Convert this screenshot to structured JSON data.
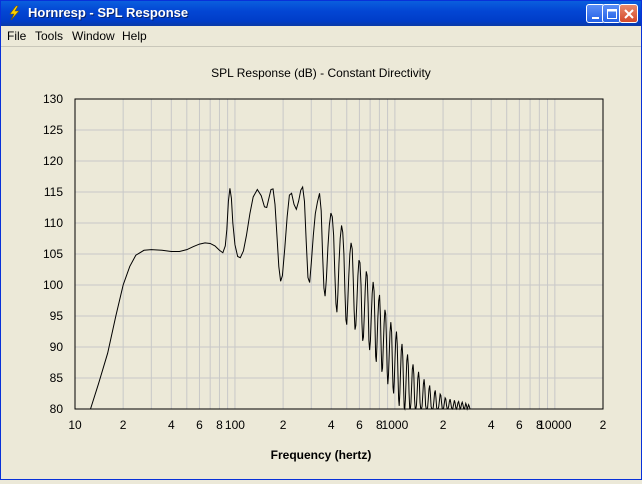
{
  "window": {
    "title": "Hornresp - SPL Response"
  },
  "menu": [
    "File",
    "Tools",
    "Window",
    "Help"
  ],
  "chart_data": {
    "type": "line",
    "title": "SPL Response (dB) - Constant Directivity",
    "xlabel": "Frequency (hertz)",
    "ylabel": "",
    "x_scale": "log",
    "xlim": [
      10,
      20000
    ],
    "ylim": [
      80,
      130
    ],
    "y_ticks": [
      130,
      125,
      120,
      115,
      110,
      105,
      100,
      95,
      90,
      85,
      80
    ],
    "x_tick_labels": [
      {
        "value": 10,
        "label": "10"
      },
      {
        "value": 20,
        "label": "2"
      },
      {
        "value": 40,
        "label": "4"
      },
      {
        "value": 60,
        "label": "6"
      },
      {
        "value": 80,
        "label": "8"
      },
      {
        "value": 100,
        "label": "100"
      },
      {
        "value": 200,
        "label": "2"
      },
      {
        "value": 400,
        "label": "4"
      },
      {
        "value": 600,
        "label": "6"
      },
      {
        "value": 800,
        "label": "8"
      },
      {
        "value": 1000,
        "label": "1000"
      },
      {
        "value": 2000,
        "label": "2"
      },
      {
        "value": 4000,
        "label": "4"
      },
      {
        "value": 6000,
        "label": "6"
      },
      {
        "value": 8000,
        "label": "8"
      },
      {
        "value": 10000,
        "label": "10000"
      },
      {
        "value": 20000,
        "label": "2"
      }
    ],
    "grid": true,
    "series": [
      {
        "line_color": "#000000",
        "points": [
          [
            12.5,
            80
          ],
          [
            14,
            84
          ],
          [
            16,
            89
          ],
          [
            18,
            95
          ],
          [
            20,
            100
          ],
          [
            22,
            103
          ],
          [
            24,
            104.8
          ],
          [
            27,
            105.6
          ],
          [
            30,
            105.7
          ],
          [
            35,
            105.6
          ],
          [
            40,
            105.4
          ],
          [
            45,
            105.4
          ],
          [
            50,
            105.7
          ],
          [
            55,
            106.2
          ],
          [
            60,
            106.6
          ],
          [
            65,
            106.8
          ],
          [
            70,
            106.7
          ],
          [
            75,
            106.3
          ],
          [
            80,
            105.6
          ],
          [
            84,
            105.2
          ],
          [
            87,
            106.3
          ],
          [
            89,
            109
          ],
          [
            91,
            113.5
          ],
          [
            93,
            115.6
          ],
          [
            95,
            114
          ],
          [
            97,
            110
          ],
          [
            100,
            106.5
          ],
          [
            104,
            104.6
          ],
          [
            108,
            104.4
          ],
          [
            113,
            105.5
          ],
          [
            118,
            108
          ],
          [
            124,
            111.5
          ],
          [
            130,
            114.2
          ],
          [
            138,
            115.4
          ],
          [
            146,
            114.4
          ],
          [
            153,
            112.6
          ],
          [
            158,
            112.5
          ],
          [
            163,
            114
          ],
          [
            168,
            115.4
          ],
          [
            173,
            115.5
          ],
          [
            178,
            113
          ],
          [
            183,
            108
          ],
          [
            188,
            103
          ],
          [
            193,
            100.6
          ],
          [
            198,
            101.5
          ],
          [
            205,
            106
          ],
          [
            212,
            111
          ],
          [
            219,
            114.5
          ],
          [
            226,
            114.8
          ],
          [
            234,
            113
          ],
          [
            242,
            112.2
          ],
          [
            250,
            113.5
          ],
          [
            258,
            115.3
          ],
          [
            265,
            115.8
          ],
          [
            272,
            113.5
          ],
          [
            279,
            107
          ],
          [
            286,
            101.2
          ],
          [
            293,
            100.4
          ],
          [
            300,
            103.5
          ],
          [
            309,
            108
          ],
          [
            318,
            111.5
          ],
          [
            328,
            113.4
          ],
          [
            338,
            114.8
          ],
          [
            346,
            112
          ],
          [
            353,
            105
          ],
          [
            360,
            99.5
          ],
          [
            366,
            98.2
          ],
          [
            373,
            101
          ],
          [
            381,
            106
          ],
          [
            389,
            109.6
          ],
          [
            398,
            111.6
          ],
          [
            406,
            111
          ],
          [
            414,
            108
          ],
          [
            421,
            102
          ],
          [
            428,
            97
          ],
          [
            434,
            95.6
          ],
          [
            440,
            98.5
          ],
          [
            447,
            103.5
          ],
          [
            455,
            107.5
          ],
          [
            464,
            109.6
          ],
          [
            472,
            108.5
          ],
          [
            480,
            105
          ],
          [
            487,
            99
          ],
          [
            494,
            94.4
          ],
          [
            500,
            93.6
          ],
          [
            507,
            97
          ],
          [
            515,
            101.5
          ],
          [
            523,
            105
          ],
          [
            532,
            106.8
          ],
          [
            541,
            105.8
          ],
          [
            549,
            101
          ],
          [
            556,
            96
          ],
          [
            563,
            92.8
          ],
          [
            570,
            93.5
          ],
          [
            578,
            97
          ],
          [
            587,
            101.5
          ],
          [
            596,
            104
          ],
          [
            605,
            103.6
          ],
          [
            614,
            100
          ],
          [
            622,
            94
          ],
          [
            629,
            91
          ],
          [
            636,
            91.6
          ],
          [
            644,
            95.3
          ],
          [
            653,
            99.6
          ],
          [
            662,
            102.2
          ],
          [
            671,
            101.5
          ],
          [
            680,
            97
          ],
          [
            688,
            91
          ],
          [
            695,
            89.5
          ],
          [
            703,
            91
          ],
          [
            712,
            95
          ],
          [
            721,
            98.6
          ],
          [
            731,
            100.5
          ],
          [
            741,
            99
          ],
          [
            750,
            94
          ],
          [
            758,
            88.5
          ],
          [
            765,
            87.6
          ],
          [
            773,
            90.5
          ],
          [
            782,
            94.6
          ],
          [
            792,
            97.5
          ],
          [
            802,
            98.4
          ],
          [
            812,
            95
          ],
          [
            821,
            89.5
          ],
          [
            829,
            86
          ],
          [
            837,
            86.6
          ],
          [
            846,
            90
          ],
          [
            856,
            93.8
          ],
          [
            866,
            96
          ],
          [
            876,
            95.3
          ],
          [
            886,
            91
          ],
          [
            895,
            86
          ],
          [
            903,
            84
          ],
          [
            912,
            85.5
          ],
          [
            922,
            89
          ],
          [
            932,
            92.4
          ],
          [
            943,
            94
          ],
          [
            954,
            92.4
          ],
          [
            964,
            87.6
          ],
          [
            973,
            83.5
          ],
          [
            982,
            82.5
          ],
          [
            991,
            84.5
          ],
          [
            1001,
            88
          ],
          [
            1012,
            91.2
          ],
          [
            1023,
            92.5
          ],
          [
            1034,
            90.5
          ],
          [
            1045,
            85.6
          ],
          [
            1055,
            81.6
          ],
          [
            1064,
            80.5
          ],
          [
            1074,
            82.6
          ],
          [
            1085,
            86.2
          ],
          [
            1096,
            89.4
          ],
          [
            1108,
            90.5
          ],
          [
            1120,
            88.5
          ],
          [
            1132,
            84
          ],
          [
            1143,
            80.2
          ],
          [
            1153,
            80
          ],
          [
            1163,
            81.5
          ],
          [
            1175,
            84.8
          ],
          [
            1187,
            87.8
          ],
          [
            1200,
            88.8
          ],
          [
            1213,
            87
          ],
          [
            1226,
            82.6
          ],
          [
            1238,
            80
          ],
          [
            1249,
            80
          ],
          [
            1260,
            81
          ],
          [
            1272,
            83.6
          ],
          [
            1285,
            86.4
          ],
          [
            1299,
            87.2
          ],
          [
            1313,
            85.6
          ],
          [
            1327,
            81.5
          ],
          [
            1340,
            80
          ],
          [
            1352,
            80
          ],
          [
            1364,
            80.6
          ],
          [
            1377,
            82.6
          ],
          [
            1391,
            85
          ],
          [
            1406,
            86
          ],
          [
            1421,
            84.6
          ],
          [
            1436,
            81
          ],
          [
            1451,
            80
          ],
          [
            1464,
            80
          ],
          [
            1478,
            80.4
          ],
          [
            1492,
            82
          ],
          [
            1507,
            84
          ],
          [
            1523,
            84.8
          ],
          [
            1539,
            83.4
          ],
          [
            1555,
            80.6
          ],
          [
            1571,
            80
          ],
          [
            1586,
            80
          ],
          [
            1601,
            80.2
          ],
          [
            1617,
            81.6
          ],
          [
            1633,
            83.2
          ],
          [
            1650,
            83.8
          ],
          [
            1667,
            82.4
          ],
          [
            1684,
            80.4
          ],
          [
            1701,
            80
          ],
          [
            1718,
            80
          ],
          [
            1735,
            80.2
          ],
          [
            1752,
            81.2
          ],
          [
            1770,
            82.6
          ],
          [
            1788,
            83
          ],
          [
            1806,
            81.8
          ],
          [
            1824,
            80.2
          ],
          [
            1842,
            80
          ],
          [
            1861,
            80
          ],
          [
            1880,
            80.4
          ],
          [
            1899,
            81.4
          ],
          [
            1918,
            82.4
          ],
          [
            1938,
            82.2
          ],
          [
            1958,
            81
          ],
          [
            1978,
            80
          ],
          [
            1998,
            80
          ],
          [
            2018,
            80.2
          ],
          [
            2039,
            81
          ],
          [
            2060,
            81.8
          ],
          [
            2081,
            81.6
          ],
          [
            2102,
            80.6
          ],
          [
            2124,
            80
          ],
          [
            2146,
            80
          ],
          [
            2168,
            80.4
          ],
          [
            2190,
            81.2
          ],
          [
            2213,
            81.6
          ],
          [
            2236,
            81
          ],
          [
            2259,
            80.2
          ],
          [
            2282,
            80
          ],
          [
            2306,
            80.2
          ],
          [
            2330,
            80.8
          ],
          [
            2354,
            81.4
          ],
          [
            2378,
            81
          ],
          [
            2403,
            80.2
          ],
          [
            2428,
            80
          ],
          [
            2453,
            80.4
          ],
          [
            2478,
            81
          ],
          [
            2504,
            81.2
          ],
          [
            2530,
            80.6
          ],
          [
            2556,
            80
          ],
          [
            2582,
            80.2
          ],
          [
            2609,
            80.8
          ],
          [
            2636,
            81.1
          ],
          [
            2663,
            80.7
          ],
          [
            2690,
            80.1
          ],
          [
            2718,
            80
          ],
          [
            2746,
            80.4
          ],
          [
            2774,
            80.9
          ],
          [
            2802,
            80.6
          ],
          [
            2831,
            80
          ],
          [
            2860,
            80.3
          ],
          [
            2890,
            80.7
          ],
          [
            2920,
            80.4
          ],
          [
            2950,
            80
          ]
        ]
      }
    ]
  }
}
